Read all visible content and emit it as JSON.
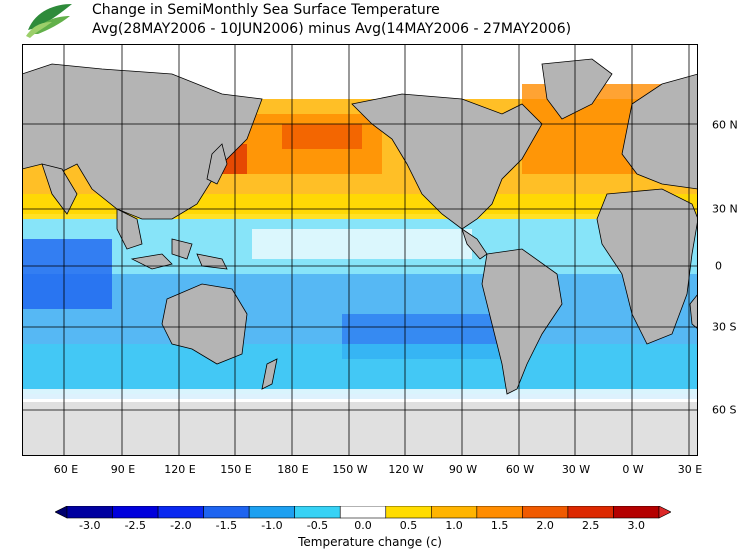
{
  "title_line1": "Change in SemiMonthly Sea Surface Temperature",
  "title_line2": "Avg(28MAY2006 - 10JUN2006) minus Avg(14MAY2006 - 27MAY2006)",
  "logo_icon": "leaf-logo-icon",
  "map": {
    "x_ticks": [
      "60 E",
      "90 E",
      "120 E",
      "150 E",
      "180 E",
      "150 W",
      "120 W",
      "90 W",
      "60 W",
      "30 W",
      "0 W",
      "30 E"
    ],
    "y_ticks": [
      "60 N",
      "30 N",
      "0",
      "30 S",
      "60 S"
    ],
    "land_color": "#b4b4b4",
    "ice_color": "#e0e0e0"
  },
  "colorbar": {
    "title": "Temperature change  (c)",
    "labels": [
      "-3.0",
      "-2.5",
      "-2.0",
      "-1.5",
      "-1.0",
      "-0.5",
      "0.0",
      "0.5",
      "1.0",
      "1.5",
      "2.0",
      "2.5",
      "3.0"
    ],
    "colors": [
      "#0000a0",
      "#0000dc",
      "#0a28f0",
      "#1e64f0",
      "#1ea0f0",
      "#37d2f5",
      "#ffffff",
      "#ffdc00",
      "#ffb400",
      "#ff8c00",
      "#f05a00",
      "#dc2800",
      "#b40000"
    ],
    "low_arrow_color": "#00006e",
    "high_arrow_color": "#dc2828"
  }
}
